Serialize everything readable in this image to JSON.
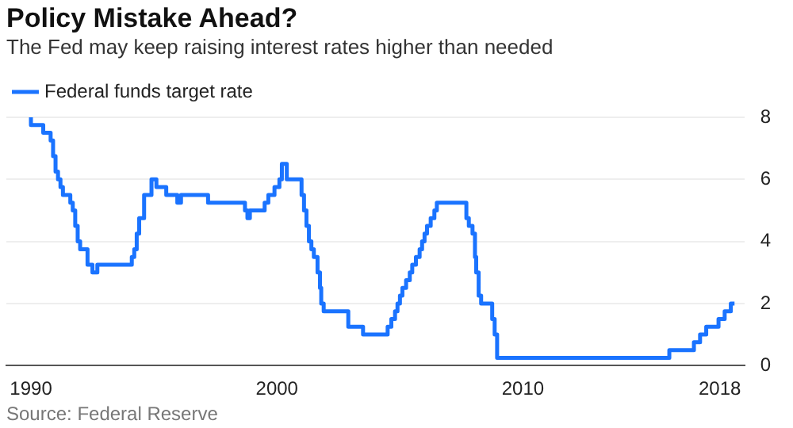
{
  "chart_data": {
    "type": "step",
    "title": "Policy Mistake Ahead?",
    "subtitle": "The Fed may keep raising interest rates higher than needed",
    "annotations": [
      "Source: Federal Reserve"
    ],
    "x": [
      1990,
      1990.5,
      1990.8,
      1990.9,
      1991.0,
      1991.1,
      1991.2,
      1991.3,
      1991.6,
      1991.7,
      1991.8,
      1991.9,
      1992.0,
      1992.3,
      1992.5,
      1992.7,
      1994.1,
      1994.2,
      1994.3,
      1994.4,
      1994.6,
      1994.9,
      1995.1,
      1995.5,
      1995.95,
      1996.1,
      1997.2,
      1998.7,
      1998.8,
      1998.9,
      1999.5,
      1999.65,
      1999.9,
      2000.1,
      2000.2,
      2000.4,
      2001.0,
      2001.1,
      2001.2,
      2001.3,
      2001.4,
      2001.5,
      2001.65,
      2001.75,
      2001.8,
      2001.9,
      2002.9,
      2003.5,
      2004.5,
      2004.65,
      2004.8,
      2004.9,
      2005.0,
      2005.1,
      2005.25,
      2005.4,
      2005.5,
      2005.65,
      2005.8,
      2005.9,
      2006.0,
      2006.1,
      2006.25,
      2006.4,
      2006.5,
      2007.7,
      2007.8,
      2007.95,
      2008.05,
      2008.1,
      2008.2,
      2008.3,
      2008.75,
      2008.85,
      2008.95,
      2015.95,
      2016.95,
      2017.2,
      2017.45,
      2017.95,
      2018.2,
      2018.45,
      2018.6
    ],
    "series": [
      {
        "name": "Federal funds target rate",
        "color": "#1a73ff",
        "values": [
          8,
          7.75,
          7.5,
          7.25,
          6.75,
          6.25,
          6,
          5.75,
          5.5,
          5.25,
          5,
          4.5,
          4,
          3.75,
          3.25,
          3,
          3.25,
          3.5,
          3.75,
          4.25,
          4.75,
          5.5,
          6,
          5.75,
          5.5,
          5.25,
          5.5,
          5.25,
          5,
          4.75,
          5,
          5.25,
          5.5,
          5.75,
          6,
          6.5,
          6,
          5.5,
          5,
          4.5,
          4,
          3.75,
          3.5,
          3,
          2.5,
          2,
          1.75,
          1.25,
          1,
          1.25,
          1.5,
          1.75,
          2,
          2.25,
          2.5,
          2.75,
          3,
          3.25,
          3.5,
          3.75,
          4,
          4.25,
          4.5,
          4.75,
          5,
          5.25,
          4.75,
          4.5,
          4.25,
          3.5,
          3,
          2.25,
          2,
          1.5,
          1,
          0.25,
          0.5,
          0.75,
          1,
          1.25,
          1.5,
          1.75,
          2
        ]
      }
    ],
    "xlim": [
      1989,
      2019
    ],
    "xticks": [
      1990,
      2000,
      2010,
      2018
    ],
    "ylim": [
      0,
      8
    ],
    "yticks": [
      0,
      2,
      4,
      6,
      8
    ],
    "grid": "y",
    "legend": "top left",
    "line_style": "solid",
    "marker": "none"
  }
}
